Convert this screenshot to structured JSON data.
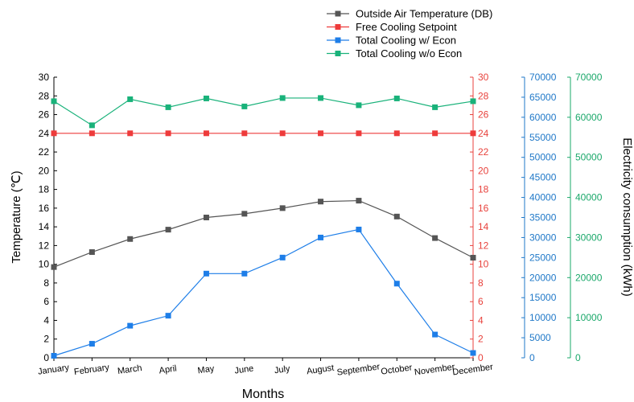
{
  "chart_data": {
    "type": "line",
    "xlabel": "Months",
    "categories": [
      "January",
      "February",
      "March",
      "April",
      "May",
      "June",
      "July",
      "August",
      "September",
      "October",
      "November",
      "December"
    ],
    "axes": {
      "left": {
        "label": "Temperature (℃)",
        "range": [
          0,
          30
        ],
        "step": 2,
        "color": "#000000"
      },
      "right1": {
        "label": "",
        "range": [
          0,
          30
        ],
        "step": 2,
        "color": "#e8423c"
      },
      "right2": {
        "label": "",
        "range": [
          0,
          70000
        ],
        "step": 5000,
        "color": "#1f78c8"
      },
      "right3": {
        "label": "Electricity consumption (kWh)",
        "range": [
          0,
          70000
        ],
        "step": 10000,
        "color": "#1aa86a"
      }
    },
    "legend": {
      "placement": "top-center"
    },
    "series": [
      {
        "name": "Outside Air Temperature (DB)",
        "axis": "left",
        "color": "#555555",
        "values": [
          9.7,
          11.3,
          12.7,
          13.7,
          15.0,
          15.4,
          16.0,
          16.7,
          16.8,
          15.1,
          12.8,
          10.7
        ]
      },
      {
        "name": "Free Cooling Setpoint",
        "axis": "right1",
        "color": "#ee3b3b",
        "values": [
          24,
          24,
          24,
          24,
          24,
          24,
          24,
          24,
          24,
          24,
          24,
          24
        ]
      },
      {
        "name": "Total Cooling w/ Econ",
        "axis": "right2",
        "color": "#1e7ee8",
        "values": [
          500,
          3500,
          8000,
          10500,
          21000,
          21000,
          25000,
          30000,
          32000,
          18500,
          5800,
          1200
        ]
      },
      {
        "name": "Total Cooling w/o Econ",
        "axis": "right3",
        "color": "#19b27a",
        "values": [
          64000,
          58000,
          64500,
          62500,
          64700,
          62700,
          64800,
          64800,
          63000,
          64700,
          62500,
          64000
        ]
      }
    ]
  }
}
